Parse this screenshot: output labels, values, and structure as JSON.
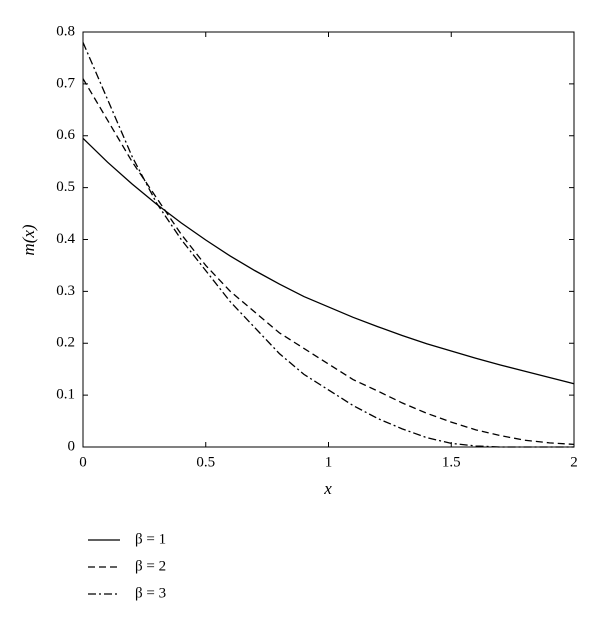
{
  "chart_data": {
    "type": "line",
    "xlabel": "x",
    "ylabel": "m(x)",
    "x": [
      0,
      0.1,
      0.2,
      0.3,
      0.4,
      0.5,
      0.6,
      0.7,
      0.8,
      0.9,
      1,
      1.1,
      1.2,
      1.3,
      1.4,
      1.5,
      1.6,
      1.7,
      1.8,
      1.9,
      2
    ],
    "series": [
      {
        "name": "β = 1",
        "color": "#000000",
        "dash": "solid",
        "values": [
          0.595,
          0.549,
          0.507,
          0.468,
          0.432,
          0.399,
          0.368,
          0.34,
          0.314,
          0.29,
          0.27,
          0.25,
          0.232,
          0.215,
          0.199,
          0.185,
          0.171,
          0.158,
          0.146,
          0.134,
          0.122
        ]
      },
      {
        "name": "β = 2",
        "color": "#000000",
        "dash": "dashed",
        "values": [
          0.71,
          0.63,
          0.55,
          0.48,
          0.41,
          0.35,
          0.3,
          0.26,
          0.22,
          0.19,
          0.16,
          0.13,
          0.108,
          0.085,
          0.065,
          0.048,
          0.033,
          0.022,
          0.013,
          0.008,
          0.005
        ]
      },
      {
        "name": "β = 3",
        "color": "#000000",
        "dash": "dashdot",
        "values": [
          0.78,
          0.67,
          0.56,
          0.47,
          0.4,
          0.34,
          0.28,
          0.23,
          0.18,
          0.14,
          0.11,
          0.08,
          0.055,
          0.035,
          0.018,
          0.007,
          0.002,
          0,
          0,
          0,
          0
        ]
      }
    ],
    "xlim": [
      0,
      2
    ],
    "xticks": [
      0,
      0.5,
      1,
      1.5,
      2
    ],
    "ylim": [
      0,
      0.8
    ],
    "yticks": [
      0,
      0.1,
      0.2,
      0.3,
      0.4,
      0.5,
      0.6,
      0.7,
      0.8
    ],
    "grid": false,
    "legend": "below-left"
  }
}
